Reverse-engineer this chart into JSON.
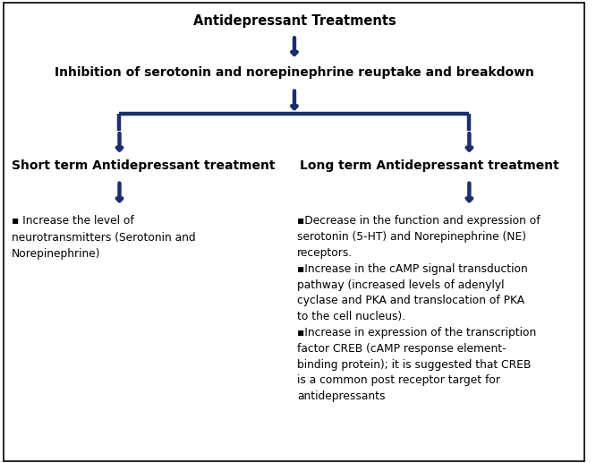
{
  "bg_color": "#ffffff",
  "arrow_color": "#1a2e6e",
  "text_color": "#000000",
  "title": "Antidepressant Treatments",
  "box2": "Inhibition of serotonin and norepinephrine reuptake and breakdown",
  "left_header": "Short term Antidepressant treatment",
  "right_header": "Long term Antidepressant treatment",
  "left_body": "▪ Increase the level of\nneurotransmitters (Serotonin and\nNorepinephrine)",
  "right_body": "▪Decrease in the function and expression of\nserotonin (5-HT) and Norepinephrine (NE)\nreceptors.\n▪Increase in the cAMP signal transduction\npathway (increased levels of adenylyl\ncyclase and PKA and translocation of PKA\nto the cell nucleus).\n▪Increase in expression of the transcription\nfactor CREB (cAMP response element-\nbinding protein); it is suggested that CREB\nis a common post receptor target for\nantidepressants",
  "figsize": [
    6.85,
    5.17
  ],
  "dpi": 100
}
